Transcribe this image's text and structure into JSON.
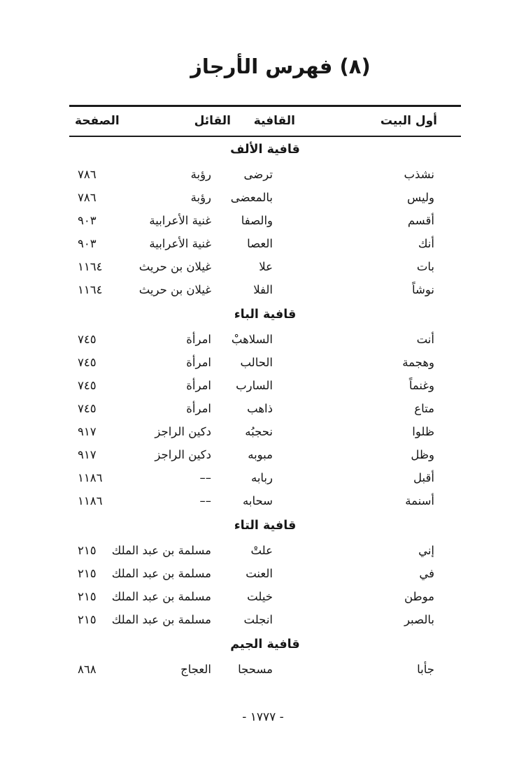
{
  "page": {
    "title": "(٨) فهرس الأرجاز",
    "footer_page_number": "- ١٧٧٧ -"
  },
  "table": {
    "headers": {
      "first_verse": "أول البيت",
      "rhyme": "القافية",
      "speaker": "القائل",
      "page": "الصفحة"
    },
    "sections": [
      {
        "label": "قافية الألف",
        "rows": [
          {
            "first_verse": "نشذب",
            "rhyme": "ترضى",
            "speaker": "رؤبة",
            "page": "٧٨٦"
          },
          {
            "first_verse": "وليس",
            "rhyme": "بالمعضى",
            "speaker": "رؤبة",
            "page": "٧٨٦"
          },
          {
            "first_verse": "أقسم",
            "rhyme": "والصفا",
            "speaker": "غنية الأعرابية",
            "page": "٩٠٣"
          },
          {
            "first_verse": "أنك",
            "rhyme": "العصا",
            "speaker": "غنية الأعرابية",
            "page": "٩٠٣"
          },
          {
            "first_verse": "بات",
            "rhyme": "علا",
            "speaker": "غيلان بن حريث",
            "page": "١١٦٤"
          },
          {
            "first_verse": "نوشاً",
            "rhyme": "الفلا",
            "speaker": "غيلان بن حريث",
            "page": "١١٦٤"
          }
        ]
      },
      {
        "label": "قافية الباء",
        "rows": [
          {
            "first_verse": "أنت",
            "rhyme": "السلاهبْ",
            "speaker": "امرأة",
            "page": "٧٤٥"
          },
          {
            "first_verse": "وهجمة",
            "rhyme": "الحالب",
            "speaker": "امرأة",
            "page": "٧٤٥"
          },
          {
            "first_verse": "وغنماً",
            "rhyme": "السارب",
            "speaker": "امرأة",
            "page": "٧٤٥"
          },
          {
            "first_verse": "متاع",
            "rhyme": "ذاهب",
            "speaker": "امرأة",
            "page": "٧٤٥"
          },
          {
            "first_verse": "ظلوا",
            "rhyme": "نحجبُه",
            "speaker": "دكين الراجز",
            "page": "٩١٧"
          },
          {
            "first_verse": "وظل",
            "rhyme": "مبوبه",
            "speaker": "دكين الراجز",
            "page": "٩١٧"
          },
          {
            "first_verse": "أقبل",
            "rhyme": "ربابه",
            "speaker": "––",
            "page": "١١٨٦"
          },
          {
            "first_verse": "أسنمة",
            "rhyme": "سحابه",
            "speaker": "––",
            "page": "١١٨٦"
          }
        ]
      },
      {
        "label": "قافية التاء",
        "rows": [
          {
            "first_verse": "إني",
            "rhyme": "علتْ",
            "speaker": "مسلمة بن عبد الملك",
            "page": "٢١٥"
          },
          {
            "first_verse": "في",
            "rhyme": "العنت",
            "speaker": "مسلمة بن عبد الملك",
            "page": "٢١٥"
          },
          {
            "first_verse": "موطن",
            "rhyme": "خيلت",
            "speaker": "مسلمة بن عبد الملك",
            "page": "٢١٥"
          },
          {
            "first_verse": "بالصبر",
            "rhyme": "انجلت",
            "speaker": "مسلمة بن عبد الملك",
            "page": "٢١٥"
          }
        ]
      },
      {
        "label": "قافية الجيم",
        "rows": [
          {
            "first_verse": "جأبا",
            "rhyme": "مسحجا",
            "speaker": "العجاج",
            "page": "٨٦٨"
          }
        ]
      }
    ]
  }
}
